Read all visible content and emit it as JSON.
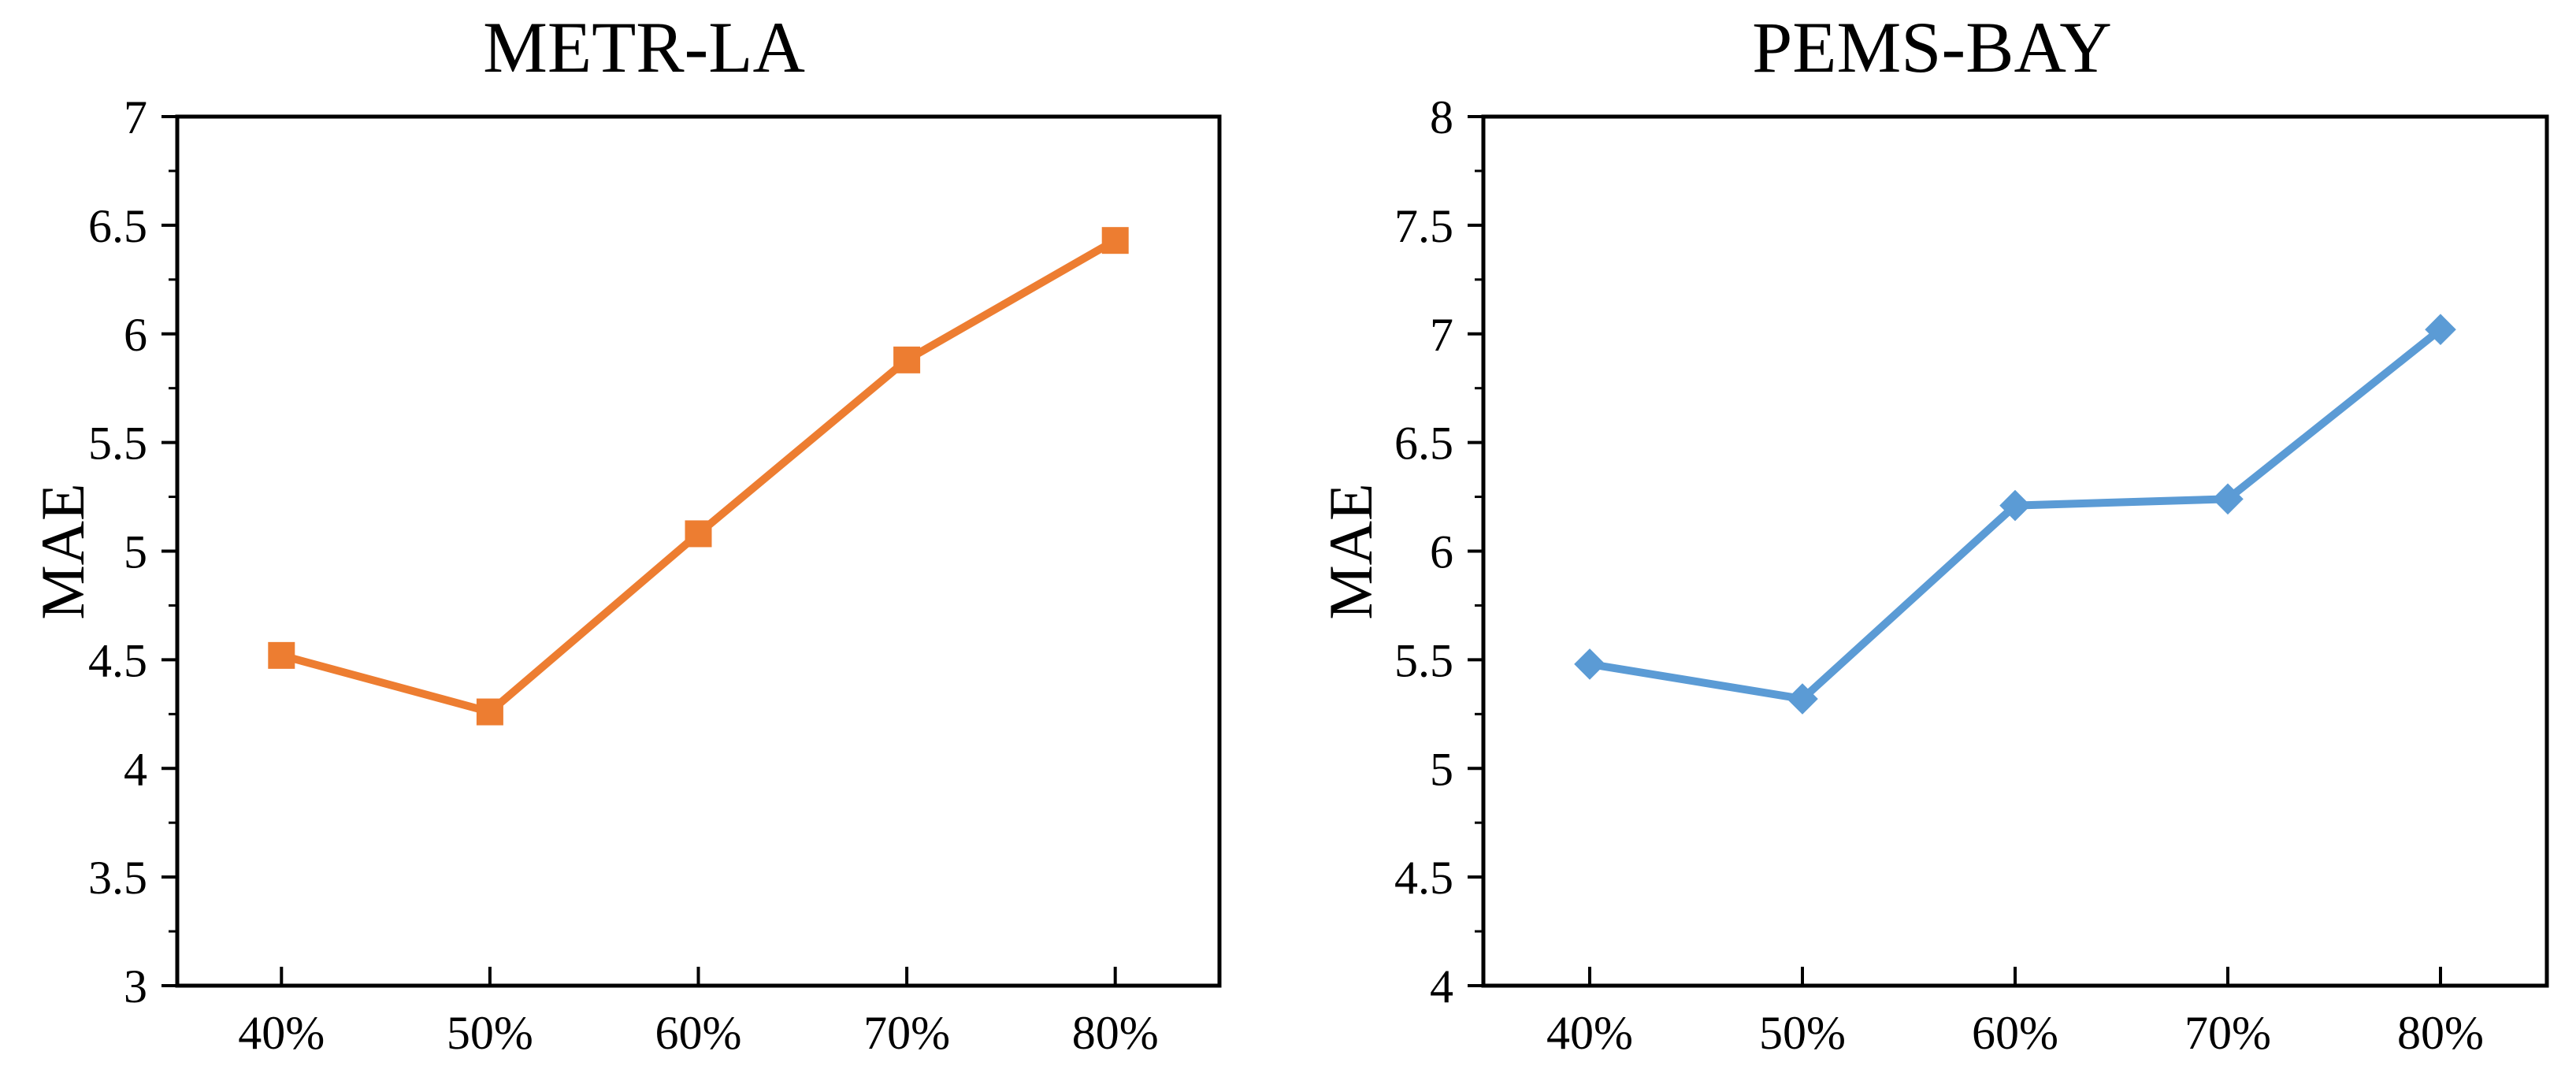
{
  "chart_data": [
    {
      "type": "line",
      "title": "METR-LA",
      "ylabel": "MAE",
      "xlabel": "",
      "categories": [
        "40%",
        "50%",
        "60%",
        "70%",
        "80%"
      ],
      "values": [
        4.52,
        4.26,
        5.08,
        5.88,
        6.43
      ],
      "ylim": [
        3,
        7
      ],
      "y_tick_labels": [
        "7",
        "6.5",
        "6",
        "5.5",
        "5",
        "4.5",
        "4",
        "3.5",
        "3"
      ],
      "y_minor_step": 0.25,
      "grid": false,
      "legend": "none",
      "line_color": "#ED7D31",
      "marker": "square",
      "axis_color": "#000000"
    },
    {
      "type": "line",
      "title": "PEMS-BAY",
      "ylabel": "MAE",
      "xlabel": "",
      "categories": [
        "40%",
        "50%",
        "60%",
        "70%",
        "80%"
      ],
      "values": [
        5.48,
        5.32,
        6.21,
        6.24,
        7.02
      ],
      "ylim": [
        4,
        8
      ],
      "y_tick_labels": [
        "8",
        "7.5",
        "7",
        "6.5",
        "6",
        "5.5",
        "5",
        "4.5",
        "4"
      ],
      "y_minor_step": 0.25,
      "grid": false,
      "legend": "none",
      "line_color": "#5B9BD5",
      "marker": "diamond",
      "axis_color": "#000000"
    }
  ]
}
